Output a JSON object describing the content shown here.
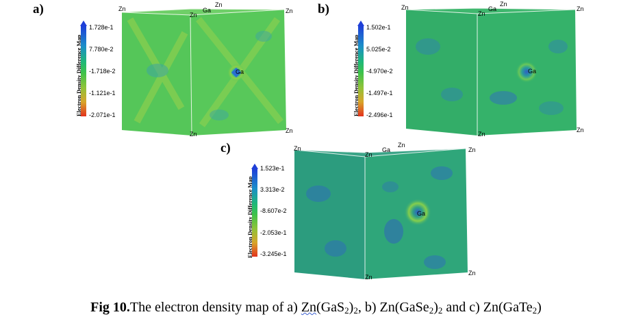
{
  "panels": [
    {
      "label": "a)",
      "legend_title": "Electron Density Difference Map",
      "ticks": [
        "1.728e-1",
        "7.780e-2",
        "-1.718e-2",
        "-1.121e-1",
        "-2.071e-1"
      ],
      "atoms": {
        "zn1": "Zn",
        "ga_top": "Ga",
        "zn_top": "Zn",
        "zn2": "Zn",
        "zn3": "Zn",
        "ga_center": "Ga",
        "zn4": "Zn",
        "zn5": "Zn"
      },
      "colors": {
        "base": "#4ec34f",
        "front": "#58c85a",
        "spot": "#2a9db8"
      }
    },
    {
      "label": "b)",
      "legend_title": "Electron Density Difference Map",
      "ticks": [
        "1.502e-1",
        "5.025e-2",
        "-4.970e-2",
        "-1.497e-1",
        "-2.496e-1"
      ],
      "atoms": {
        "zn1": "Zn",
        "ga_top": "Ga",
        "zn_top": "Zn",
        "zn2": "Zn",
        "zn3": "Zn",
        "ga_center": "Ga",
        "zn4": "Zn",
        "zn5": "Zn"
      },
      "colors": {
        "base": "#2fae66",
        "front": "#35b26a",
        "spot": "#2f72b8"
      }
    },
    {
      "label": "c)",
      "legend_title": "Electron Density Difference Map",
      "ticks": [
        "1.523e-1",
        "3.313e-2",
        "-8.607e-2",
        "-2.053e-1",
        "-3.245e-1"
      ],
      "atoms": {
        "zn1": "Zn",
        "ga_top": "Ga",
        "zn_top": "Zn",
        "zn2": "Zn",
        "zn3": "Zn",
        "ga_center": "Ga",
        "zn4": "Zn",
        "zn5": "Zn"
      },
      "colors": {
        "base": "#2a9f78",
        "front": "#2fa67a",
        "spot": "#2f60c0"
      }
    }
  ],
  "caption": {
    "fig": "Fig 10.",
    "text_a": "The electron density map of a) ",
    "zn1": "Zn",
    "gas": "(GaS",
    "sub2a": "2",
    "close1": ")",
    "sub2b": "2",
    "text_b": ", b) Zn(GaSe",
    "sub2c": "2",
    "close2": ")",
    "sub2d": "2",
    "text_c": " and c) Zn(GaTe",
    "sub2e": "2",
    "close3": ")"
  }
}
